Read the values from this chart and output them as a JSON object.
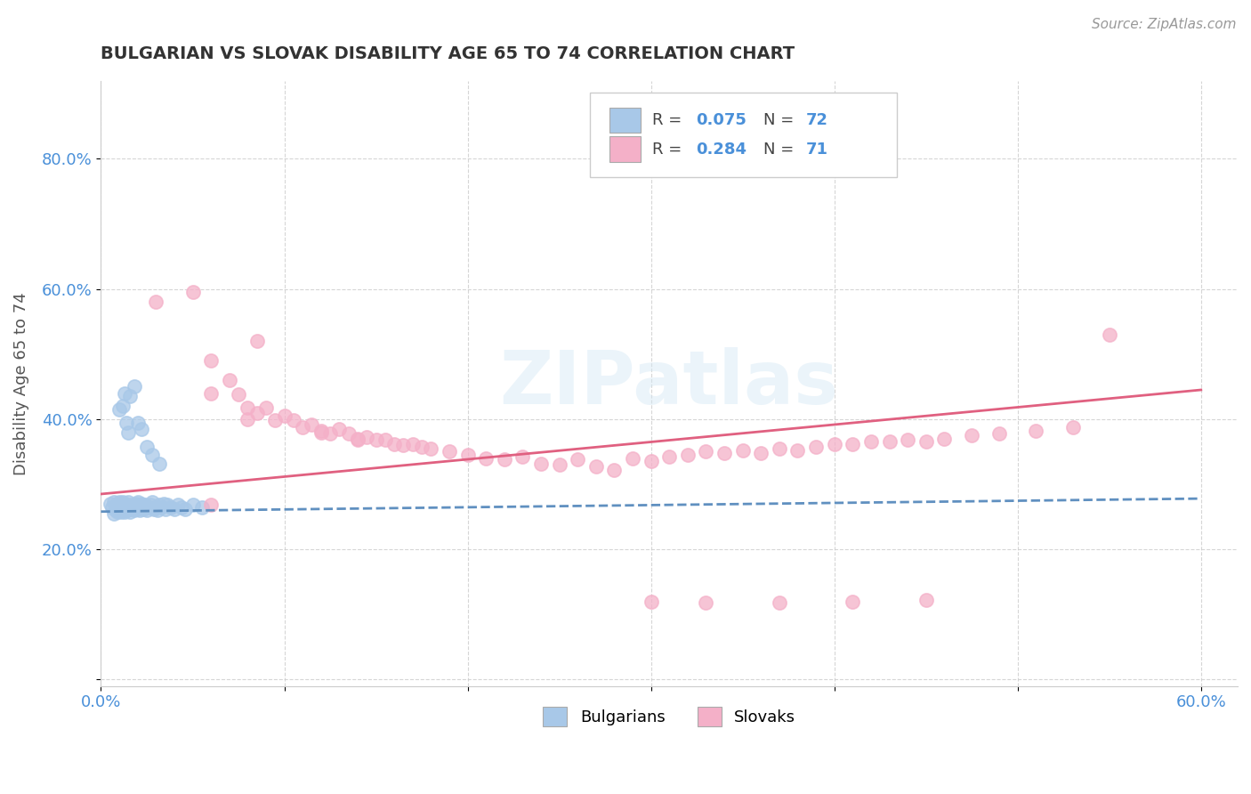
{
  "title": "BULGARIAN VS SLOVAK DISABILITY AGE 65 TO 74 CORRELATION CHART",
  "source_text": "Source: ZipAtlas.com",
  "ylabel": "Disability Age 65 to 74",
  "xlim": [
    0.0,
    0.62
  ],
  "ylim": [
    -0.01,
    0.92
  ],
  "xtick_vals": [
    0.0,
    0.1,
    0.2,
    0.3,
    0.4,
    0.5,
    0.6
  ],
  "xticklabels": [
    "0.0%",
    "",
    "",
    "",
    "",
    "",
    "60.0%"
  ],
  "ytick_vals": [
    0.0,
    0.2,
    0.4,
    0.6,
    0.8
  ],
  "yticklabels": [
    "",
    "20.0%",
    "40.0%",
    "60.0%",
    "80.0%"
  ],
  "legend_label1": "Bulgarians",
  "legend_label2": "Slovaks",
  "color_bulgarian": "#a8c8e8",
  "color_slovak": "#f4b0c8",
  "color_line_bulgarian": "#6090c0",
  "color_line_slovak": "#e06080",
  "watermark_text": "ZIPatlas",
  "bulgarian_x": [
    0.005,
    0.006,
    0.007,
    0.007,
    0.008,
    0.008,
    0.009,
    0.009,
    0.01,
    0.01,
    0.01,
    0.011,
    0.011,
    0.011,
    0.012,
    0.012,
    0.012,
    0.013,
    0.013,
    0.014,
    0.014,
    0.015,
    0.015,
    0.016,
    0.016,
    0.017,
    0.017,
    0.018,
    0.018,
    0.019,
    0.019,
    0.02,
    0.02,
    0.021,
    0.021,
    0.022,
    0.022,
    0.023,
    0.024,
    0.025,
    0.026,
    0.027,
    0.028,
    0.029,
    0.03,
    0.031,
    0.032,
    0.033,
    0.034,
    0.035,
    0.036,
    0.038,
    0.04,
    0.042,
    0.044,
    0.046,
    0.05,
    0.055,
    0.01,
    0.012,
    0.013,
    0.014,
    0.015,
    0.016,
    0.018,
    0.02,
    0.022,
    0.025,
    0.028,
    0.032
  ],
  "bulgarian_y": [
    0.27,
    0.265,
    0.255,
    0.272,
    0.26,
    0.268,
    0.258,
    0.265,
    0.262,
    0.268,
    0.272,
    0.258,
    0.265,
    0.27,
    0.26,
    0.265,
    0.272,
    0.258,
    0.268,
    0.26,
    0.265,
    0.268,
    0.272,
    0.258,
    0.265,
    0.262,
    0.268,
    0.26,
    0.268,
    0.262,
    0.27,
    0.265,
    0.272,
    0.26,
    0.268,
    0.265,
    0.27,
    0.262,
    0.268,
    0.26,
    0.265,
    0.268,
    0.272,
    0.262,
    0.265,
    0.26,
    0.268,
    0.265,
    0.27,
    0.262,
    0.268,
    0.265,
    0.262,
    0.268,
    0.265,
    0.262,
    0.268,
    0.265,
    0.415,
    0.42,
    0.44,
    0.395,
    0.38,
    0.435,
    0.45,
    0.395,
    0.385,
    0.358,
    0.345,
    0.332
  ],
  "slovak_x": [
    0.03,
    0.05,
    0.06,
    0.07,
    0.075,
    0.08,
    0.085,
    0.09,
    0.095,
    0.1,
    0.105,
    0.11,
    0.115,
    0.12,
    0.125,
    0.13,
    0.135,
    0.14,
    0.145,
    0.15,
    0.155,
    0.16,
    0.165,
    0.17,
    0.175,
    0.18,
    0.19,
    0.2,
    0.21,
    0.22,
    0.23,
    0.24,
    0.25,
    0.26,
    0.27,
    0.28,
    0.29,
    0.3,
    0.31,
    0.32,
    0.33,
    0.34,
    0.35,
    0.36,
    0.37,
    0.38,
    0.39,
    0.4,
    0.41,
    0.42,
    0.43,
    0.44,
    0.45,
    0.46,
    0.475,
    0.49,
    0.51,
    0.53,
    0.06,
    0.08,
    0.12,
    0.14,
    0.3,
    0.33,
    0.37,
    0.41,
    0.45,
    0.06,
    0.085,
    0.55
  ],
  "slovak_y": [
    0.58,
    0.595,
    0.49,
    0.46,
    0.438,
    0.418,
    0.41,
    0.418,
    0.398,
    0.405,
    0.398,
    0.388,
    0.392,
    0.382,
    0.378,
    0.385,
    0.378,
    0.37,
    0.372,
    0.368,
    0.368,
    0.362,
    0.36,
    0.362,
    0.358,
    0.355,
    0.35,
    0.345,
    0.34,
    0.338,
    0.342,
    0.332,
    0.33,
    0.338,
    0.328,
    0.322,
    0.34,
    0.335,
    0.342,
    0.345,
    0.35,
    0.348,
    0.352,
    0.348,
    0.355,
    0.352,
    0.358,
    0.362,
    0.362,
    0.365,
    0.365,
    0.368,
    0.365,
    0.37,
    0.375,
    0.378,
    0.382,
    0.388,
    0.44,
    0.4,
    0.38,
    0.368,
    0.12,
    0.118,
    0.118,
    0.12,
    0.122,
    0.268,
    0.52,
    0.53
  ],
  "bul_line_x": [
    0.0,
    0.6
  ],
  "bul_line_y": [
    0.258,
    0.278
  ],
  "slk_line_x": [
    0.0,
    0.6
  ],
  "slk_line_y": [
    0.285,
    0.445
  ]
}
